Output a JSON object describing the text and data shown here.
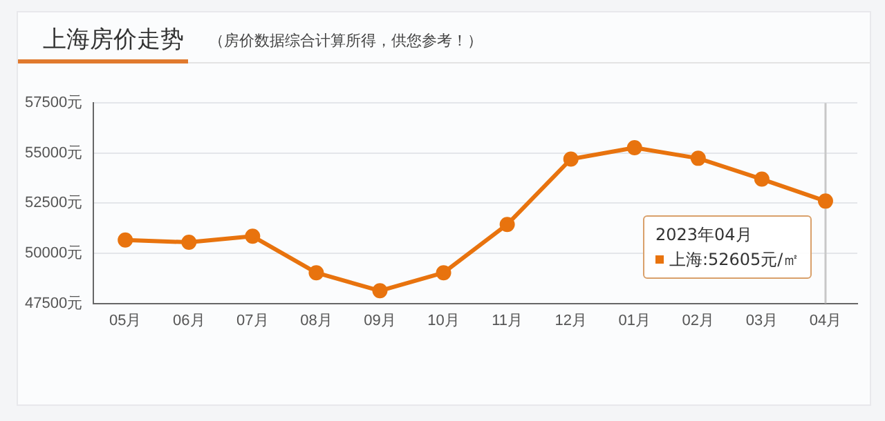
{
  "chart_data": {
    "type": "line",
    "title": "上海房价走势",
    "subtitle": "（房价数据综合计算所得，供您参考！）",
    "categories": [
      "05月",
      "06月",
      "07月",
      "08月",
      "09月",
      "10月",
      "11月",
      "12月",
      "01月",
      "02月",
      "03月",
      "04月"
    ],
    "series": [
      {
        "name": "上海",
        "color": "#e8730e",
        "values": [
          50660,
          50550,
          50850,
          49030,
          48130,
          49030,
          51440,
          54700,
          55270,
          54740,
          53700,
          52605
        ]
      }
    ],
    "ylim": [
      47500,
      57500
    ],
    "yticks": [
      {
        "value": 47500,
        "label": "47500元"
      },
      {
        "value": 50000,
        "label": "50000元"
      },
      {
        "value": 52500,
        "label": "52500元"
      },
      {
        "value": 55000,
        "label": "55000元"
      },
      {
        "value": 57500,
        "label": "57500元"
      }
    ],
    "grid": "y",
    "legend": false,
    "marker": "circle",
    "line_style": "solid",
    "ref_lines": [
      {
        "axis": "x",
        "value": "04月",
        "color": "#c8c8c8"
      }
    ],
    "annotations": [
      "2023年04月",
      ":52605元/㎡"
    ]
  }
}
